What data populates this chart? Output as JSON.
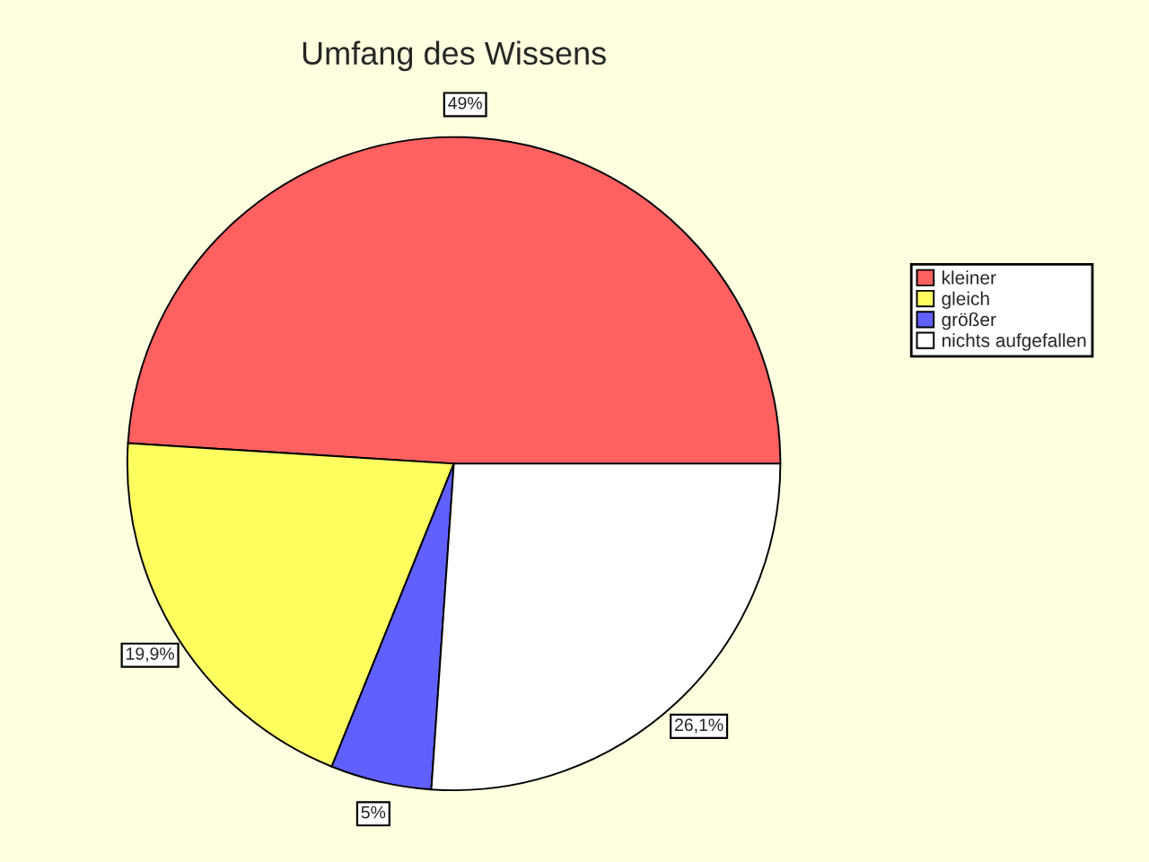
{
  "chart_data": {
    "type": "pie",
    "title": "Umfang des Wissens",
    "categories": [
      "kleiner",
      "gleich",
      "größer",
      "nichts aufgefallen"
    ],
    "values": [
      49,
      19.9,
      5,
      26.1
    ],
    "value_labels": [
      "49%",
      "19,9%",
      "5%",
      "26,1%"
    ],
    "colors": [
      "#ff6060",
      "#ffff60",
      "#6060ff",
      "#ffffff"
    ],
    "legend": "right"
  }
}
